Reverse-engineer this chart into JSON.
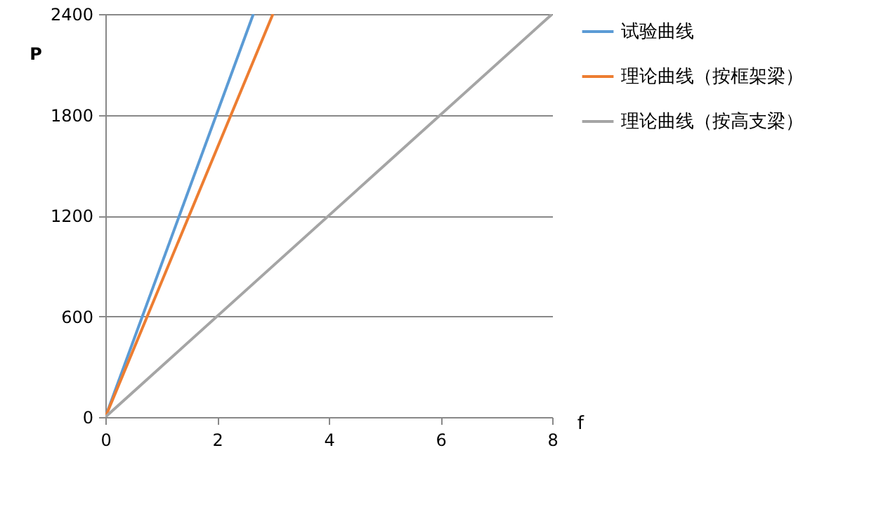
{
  "chart_data": {
    "type": "line",
    "xlabel": "f",
    "ylabel": "P",
    "xlim": [
      0,
      8
    ],
    "xticks": [
      0,
      2,
      4,
      6,
      8
    ],
    "ylim": [
      0,
      2400
    ],
    "yticks": [
      0,
      600,
      1200,
      1800,
      2400
    ],
    "grid": "y",
    "legend": "right",
    "marker": "none",
    "line_style": "solid",
    "series": [
      {
        "name": "试验曲线",
        "color": "#5b9bd5",
        "x": [
          0,
          2.65
        ],
        "values": [
          0,
          2400
        ]
      },
      {
        "name": "理论曲线（按框架梁）",
        "color": "#ed7d31",
        "x": [
          0,
          3.0
        ],
        "values": [
          0,
          2400
        ]
      },
      {
        "name": "理论曲线（按高支梁）",
        "color": "#a5a5a5",
        "x": [
          0,
          8
        ],
        "values": [
          0,
          2400
        ]
      }
    ]
  }
}
